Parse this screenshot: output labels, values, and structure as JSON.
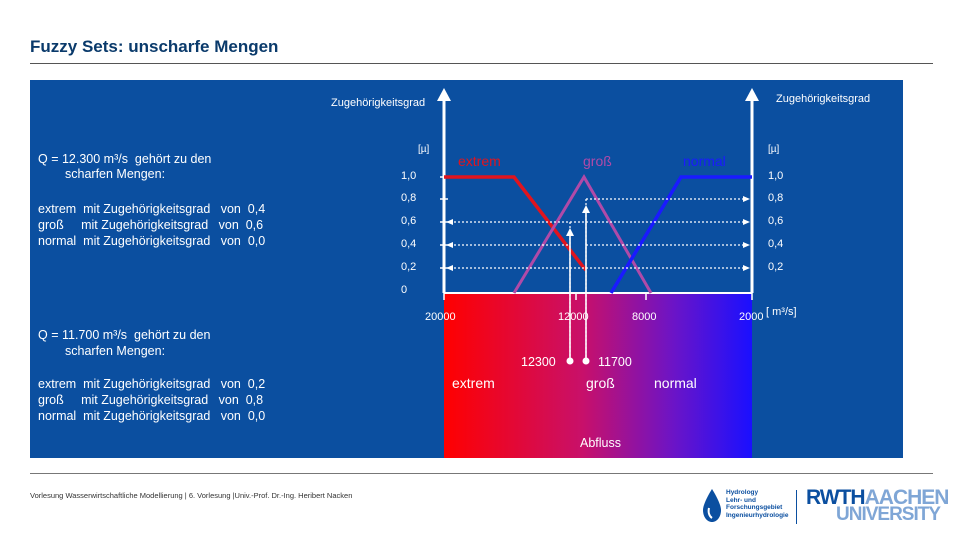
{
  "title": "Fuzzy Sets: unscharfe Mengen",
  "axis": {
    "label_left": "Zugehörigkeitsgrad",
    "label_right": "Zugehörigkeitsgrad",
    "unit_left": "[µ]",
    "unit_right": "[µ]",
    "ticks_left": [
      "1,0",
      "0,8",
      "0,6",
      "0,4",
      "0,2",
      "0"
    ],
    "ticks_right": [
      "1,0",
      "0,8",
      "0,6",
      "0,4",
      "0,2"
    ],
    "x_ticks": [
      "20000",
      "12000",
      "8000",
      "2000"
    ],
    "x_unit": "[ m³/s]",
    "x_title": "Abfluss"
  },
  "sets": {
    "extrem": "extrem",
    "gross": "groß",
    "normal": "normal",
    "extrem_bottom": "extrem",
    "gross_bottom": "groß",
    "normal_bottom": "normal"
  },
  "markers": {
    "q1": "12300",
    "q2": "11700"
  },
  "block1": {
    "heading_line1": "Q = 12.300 m³/s  gehört zu den",
    "heading_line2": "scharfen Mengen:",
    "row1": "extrem  mit Zugehörigkeitsgrad   von  0,4",
    "row2": "groß     mit Zugehörigkeitsgrad   von  0,6",
    "row3": "normal  mit Zugehörigkeitsgrad   von  0,0"
  },
  "block2": {
    "heading_line1": "Q = 11.700 m³/s  gehört zu den",
    "heading_line2": "scharfen Mengen:",
    "row1": "extrem  mit Zugehörigkeitsgrad   von  0,2",
    "row2": "groß     mit Zugehörigkeitsgrad   von  0,8",
    "row3": "normal  mit Zugehörigkeitsgrad   von  0,0"
  },
  "footer": "Vorlesung Wasserwirtschaftliche Modellierung | 6. Vorlesung |Univ.-Prof. Dr.-Ing. Heribert Nacken",
  "logos": {
    "hydrology": "Hydrology\nLehr- und\nForschungsgebiet\nIngenieurhydrologie",
    "rwth_a": "RWTH",
    "rwth_b": "AACHEN",
    "university": "UNIVERSITY"
  },
  "colors": {
    "panel": "#0b4fa0",
    "extrem": "#e0141e",
    "gross": "#b04aa8",
    "normal": "#1a1aff"
  }
}
